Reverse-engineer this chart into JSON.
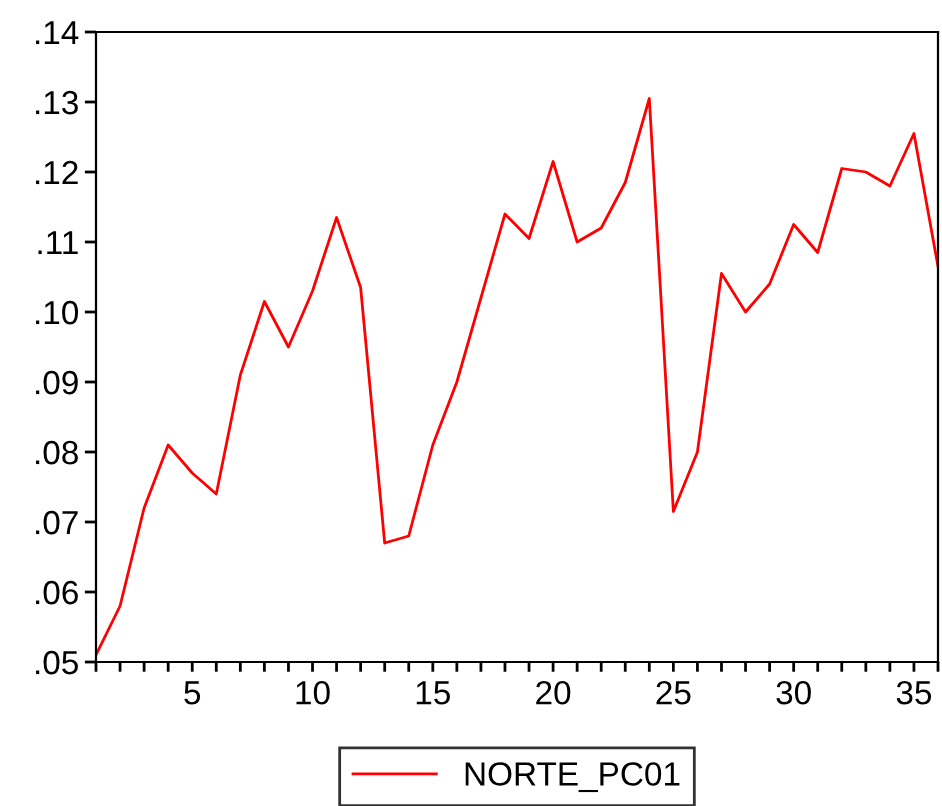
{
  "chart_data": {
    "type": "line",
    "x": [
      1,
      2,
      3,
      4,
      5,
      6,
      7,
      8,
      9,
      10,
      11,
      12,
      13,
      14,
      15,
      16,
      17,
      18,
      19,
      20,
      21,
      22,
      23,
      24,
      25,
      26,
      27,
      28,
      29,
      30,
      31,
      32,
      33,
      34,
      35,
      36
    ],
    "series": [
      {
        "name": "NORTE_PC01",
        "color": "#ff0000",
        "values": [
          0.051,
          0.058,
          0.072,
          0.081,
          0.077,
          0.074,
          0.091,
          0.1015,
          0.095,
          0.103,
          0.1135,
          0.1035,
          0.067,
          0.068,
          0.081,
          0.09,
          0.102,
          0.114,
          0.1105,
          0.1215,
          0.11,
          0.112,
          0.1185,
          0.1305,
          0.0715,
          0.08,
          0.1055,
          0.1,
          0.104,
          0.1125,
          0.1085,
          0.1205,
          0.12,
          0.118,
          0.1255,
          0.1065
        ]
      }
    ],
    "xlim": [
      1,
      36
    ],
    "ylim": [
      0.05,
      0.14
    ],
    "xticks": [
      {
        "value": 1,
        "label": null
      },
      {
        "value": 2,
        "label": null
      },
      {
        "value": 3,
        "label": null
      },
      {
        "value": 4,
        "label": null
      },
      5,
      {
        "value": 6,
        "label": null
      },
      {
        "value": 7,
        "label": null
      },
      {
        "value": 8,
        "label": null
      },
      {
        "value": 9,
        "label": null
      },
      10,
      {
        "value": 11,
        "label": null
      },
      {
        "value": 12,
        "label": null
      },
      {
        "value": 13,
        "label": null
      },
      {
        "value": 14,
        "label": null
      },
      15,
      {
        "value": 16,
        "label": null
      },
      {
        "value": 17,
        "label": null
      },
      {
        "value": 18,
        "label": null
      },
      {
        "value": 19,
        "label": null
      },
      20,
      {
        "value": 21,
        "label": null
      },
      {
        "value": 22,
        "label": null
      },
      {
        "value": 23,
        "label": null
      },
      {
        "value": 24,
        "label": null
      },
      25,
      {
        "value": 26,
        "label": null
      },
      {
        "value": 27,
        "label": null
      },
      {
        "value": 28,
        "label": null
      },
      {
        "value": 29,
        "label": null
      },
      30,
      {
        "value": 31,
        "label": null
      },
      {
        "value": 32,
        "label": null
      },
      {
        "value": 33,
        "label": null
      },
      {
        "value": 34,
        "label": null
      },
      35,
      {
        "value": 36,
        "label": null
      }
    ],
    "yticks": [
      {
        "value": 0.05,
        "label": ".05"
      },
      {
        "value": 0.06,
        "label": ".06"
      },
      {
        "value": 0.07,
        "label": ".07"
      },
      {
        "value": 0.08,
        "label": ".08"
      },
      {
        "value": 0.09,
        "label": ".09"
      },
      {
        "value": 0.1,
        "label": ".10"
      },
      {
        "value": 0.11,
        "label": ".11"
      },
      {
        "value": 0.12,
        "label": ".12"
      },
      {
        "value": 0.13,
        "label": ".13"
      },
      {
        "value": 0.14,
        "label": ".14"
      }
    ],
    "grid": false,
    "legend": "bottom",
    "marker": "none",
    "line_style": "solid"
  }
}
